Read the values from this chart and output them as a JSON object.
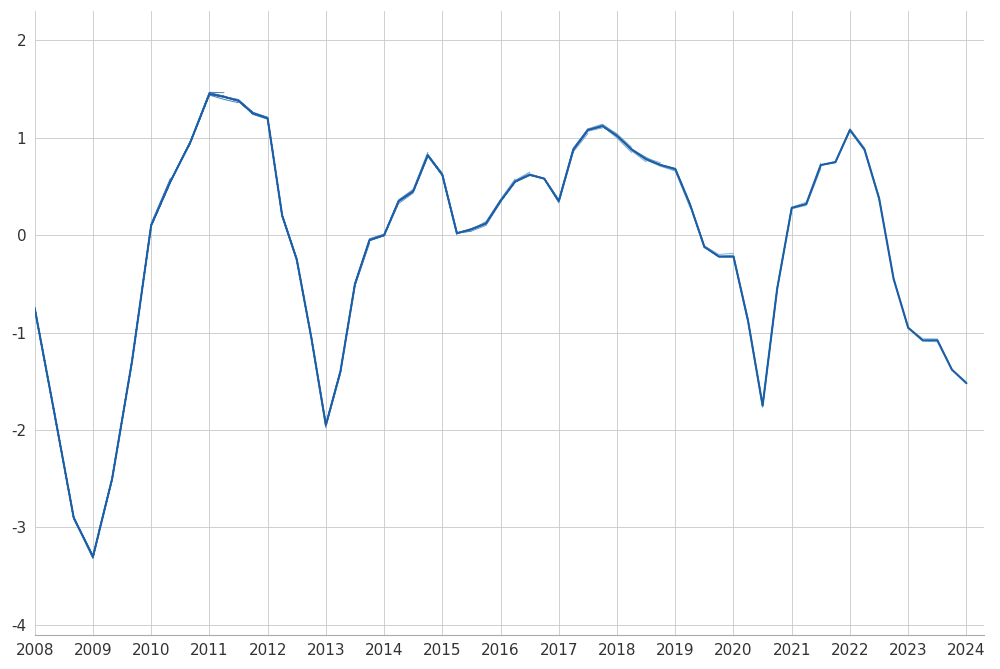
{
  "xlim": [
    2008.0,
    2024.3
  ],
  "ylim": [
    -4.1,
    2.3
  ],
  "yticks": [
    -4,
    -3,
    -2,
    -1,
    0,
    1,
    2
  ],
  "xticks": [
    2008,
    2009,
    2010,
    2011,
    2012,
    2013,
    2014,
    2015,
    2016,
    2017,
    2018,
    2019,
    2020,
    2021,
    2022,
    2023,
    2024
  ],
  "base_color_dark": "#1b5ea6",
  "base_color_light": "#90bede",
  "background_color": "#ffffff",
  "grid_color": "#c8c8c8",
  "linewidth": 0.7,
  "num_vintages": 80,
  "base_series_x": [
    2008.0,
    2008.33,
    2008.67,
    2009.0,
    2009.33,
    2009.67,
    2010.0,
    2010.33,
    2010.67,
    2011.0,
    2011.25,
    2011.5,
    2011.75,
    2012.0,
    2012.25,
    2012.5,
    2012.75,
    2013.0,
    2013.25,
    2013.5,
    2013.75,
    2014.0,
    2014.25,
    2014.5,
    2014.75,
    2015.0,
    2015.25,
    2015.5,
    2015.75,
    2016.0,
    2016.25,
    2016.5,
    2016.75,
    2017.0,
    2017.25,
    2017.5,
    2017.75,
    2018.0,
    2018.25,
    2018.5,
    2018.75,
    2019.0,
    2019.25,
    2019.5,
    2019.75,
    2020.0,
    2020.25,
    2020.5,
    2020.75,
    2021.0,
    2021.25,
    2021.5,
    2021.75,
    2022.0,
    2022.25,
    2022.5,
    2022.75,
    2023.0,
    2023.25,
    2023.5,
    2023.75,
    2024.0
  ],
  "base_series_y": [
    -0.75,
    -1.8,
    -2.9,
    -3.3,
    -2.5,
    -1.3,
    0.1,
    0.55,
    0.95,
    1.45,
    1.42,
    1.38,
    1.25,
    1.2,
    0.2,
    -0.25,
    -1.05,
    -1.95,
    -1.4,
    -0.5,
    -0.05,
    0.0,
    0.35,
    0.45,
    0.82,
    0.62,
    0.02,
    0.06,
    0.12,
    0.35,
    0.55,
    0.62,
    0.58,
    0.35,
    0.88,
    1.08,
    1.12,
    1.02,
    0.88,
    0.78,
    0.72,
    0.68,
    0.32,
    -0.12,
    -0.22,
    -0.22,
    -0.88,
    -1.75,
    -0.55,
    0.28,
    0.32,
    0.72,
    0.75,
    1.08,
    0.88,
    0.38,
    -0.45,
    -0.95,
    -1.08,
    -1.08,
    -1.38,
    -1.52
  ],
  "fan_noise_scale": 0.04,
  "fan_cumsum_scale": 0.25
}
